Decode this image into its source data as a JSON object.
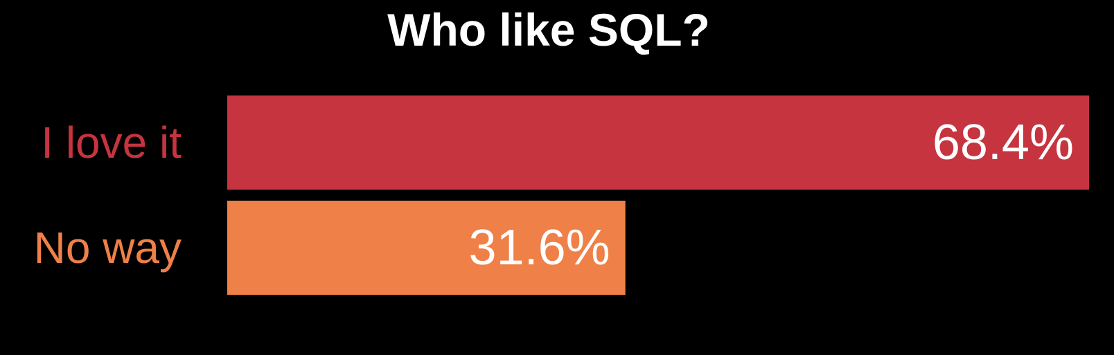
{
  "chart_data": {
    "type": "bar",
    "orientation": "horizontal",
    "title": "Who like SQL?",
    "categories": [
      "I love it",
      "No way"
    ],
    "values": [
      68.4,
      31.6
    ],
    "value_labels": [
      "68.4%",
      "31.6%"
    ],
    "colors": [
      "#c5343f",
      "#ee8048"
    ],
    "label_color": "#ffffff",
    "background": "#000000",
    "xlim": [
      0,
      68.4
    ],
    "grid": false,
    "legend": "none"
  }
}
